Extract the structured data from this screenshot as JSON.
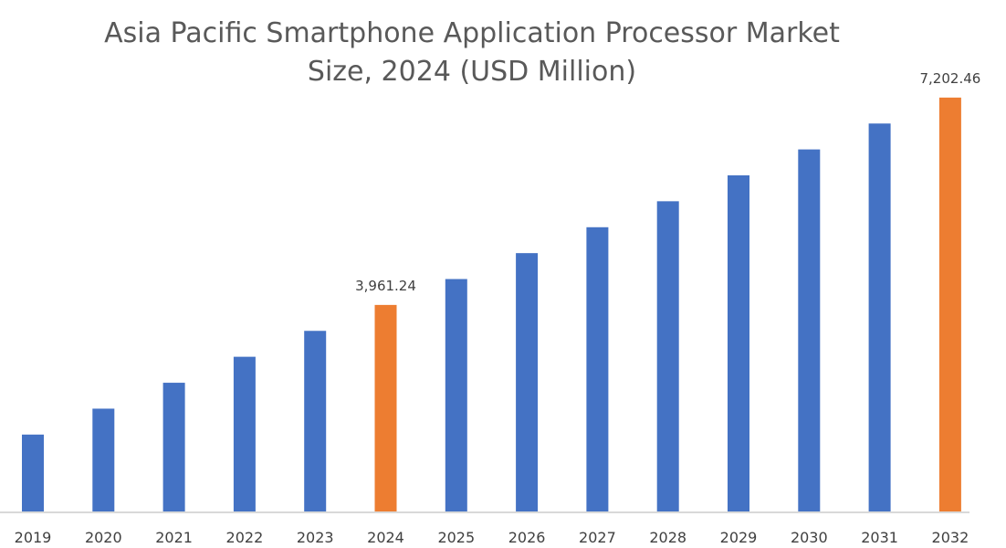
{
  "chart_data": {
    "type": "bar",
    "title": "Asia Pacific Smartphone Application Processor Market Size, 2024 (USD Million)",
    "title_lines": [
      "Asia Pacific Smartphone Application Processor Market",
      "Size, 2024 (USD Million)"
    ],
    "xlabel": "",
    "ylabel": "",
    "categories": [
      "2019",
      "2020",
      "2021",
      "2022",
      "2023",
      "2024",
      "2025",
      "2026",
      "2027",
      "2028",
      "2029",
      "2030",
      "2031",
      "2032"
    ],
    "values": [
      1935,
      2340,
      2745,
      3151,
      3556,
      3961.24,
      4366,
      4771,
      5176,
      5582,
      5987,
      6392,
      6797,
      7202.46
    ],
    "data_labels": {
      "2024": "3,961.24",
      "2032": "7,202.46"
    },
    "highlight": [
      "2024",
      "2032"
    ],
    "ylim": [
      733,
      7300
    ],
    "y_axis_visible": false,
    "grid": false,
    "legend": "none",
    "colors": {
      "default": "#4472C4",
      "highlight": "#ED7D31",
      "axis": "#D9D9D9"
    }
  }
}
